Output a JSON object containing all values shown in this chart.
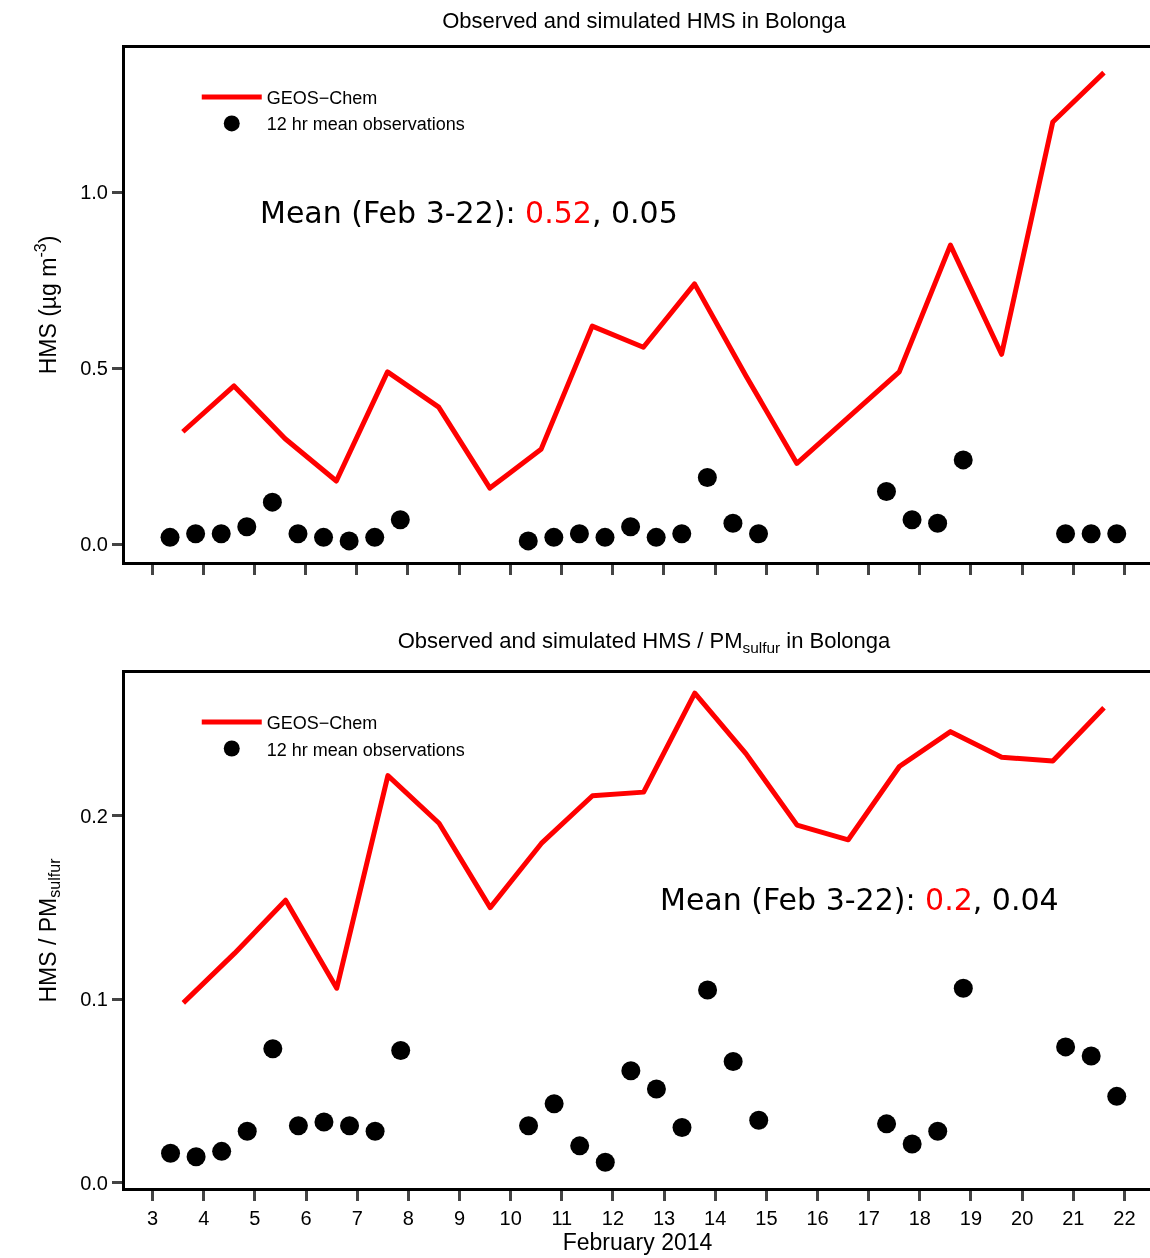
{
  "chart_data": [
    {
      "type": "line",
      "title": "Observed and simulated HMS in Bolonga",
      "ylabel": "HMS (µg m$^{-3}$)",
      "annotations": [
        "Mean (Feb 3-22): 0.52, 0.05"
      ],
      "xlim": [
        2.47,
        22.5
      ],
      "ylim": [
        -0.05,
        1.41
      ],
      "xticks": [
        3,
        4,
        5,
        6,
        7,
        8,
        9,
        10,
        11,
        12,
        13,
        14,
        15,
        16,
        17,
        18,
        19,
        20,
        21,
        22
      ],
      "yticks": [
        {
          "value": 0,
          "label": "0.0"
        },
        {
          "value": 0.5,
          "label": "0.5"
        },
        {
          "value": 1,
          "label": "1.0"
        }
      ],
      "tick_labels": "y",
      "grid": false,
      "legend": "top left",
      "series": [
        {
          "name": "GEOS−Chem",
          "color": "#ff0000",
          "line_style": "solid",
          "x": [
            3.6,
            4.6,
            5.6,
            6.6,
            7.6,
            8.6,
            9.6,
            10.6,
            11.6,
            12.6,
            13.6,
            14.6,
            15.6,
            16.6,
            17.6,
            18.6,
            19.6,
            20.6,
            21.6
          ],
          "values": [
            0.32,
            0.45,
            0.3,
            0.18,
            0.49,
            0.39,
            0.16,
            0.27,
            0.62,
            0.56,
            0.74,
            0.48,
            0.23,
            0.36,
            0.49,
            0.85,
            0.54,
            1.2,
            1.34
          ]
        },
        {
          "name": "12 hr mean observations",
          "type": "scatter",
          "color": "#000000",
          "marker": "circle",
          "x": [
            3.35,
            3.85,
            4.35,
            4.85,
            5.35,
            5.85,
            6.35,
            6.85,
            7.35,
            7.85,
            10.35,
            10.85,
            11.35,
            11.85,
            12.35,
            12.85,
            13.35,
            13.85,
            14.35,
            14.85,
            17.35,
            17.85,
            18.35,
            18.85,
            20.85,
            21.35,
            21.85
          ],
          "values": [
            0.02,
            0.03,
            0.03,
            0.05,
            0.12,
            0.03,
            0.02,
            0.01,
            0.02,
            0.07,
            0.01,
            0.02,
            0.03,
            0.02,
            0.05,
            0.02,
            0.03,
            0.19,
            0.06,
            0.03,
            0.15,
            0.07,
            0.06,
            0.24,
            0.03,
            0.03,
            0.03
          ]
        }
      ]
    },
    {
      "type": "line",
      "title": "Observed and simulated HMS / PM$_{sulfur}$ in Bolonga",
      "xlabel": "February 2014",
      "ylabel": "HMS / PM$_{sulfur}$",
      "annotations": [
        "Mean (Feb 3-22): 0.2, 0.04"
      ],
      "xlim": [
        2.46,
        22.5
      ],
      "ylim": [
        -0.003,
        0.278
      ],
      "xticks": [
        3,
        4,
        5,
        6,
        7,
        8,
        9,
        10,
        11,
        12,
        13,
        14,
        15,
        16,
        17,
        18,
        19,
        20,
        21,
        22
      ],
      "yticks": [
        {
          "value": 0,
          "label": "0.0"
        },
        0.1,
        0.2
      ],
      "grid": false,
      "legend": "top left",
      "series": [
        {
          "name": "GEOS−Chem",
          "color": "#ff0000",
          "line_style": "solid",
          "x": [
            3.6,
            4.6,
            5.6,
            6.6,
            7.6,
            8.6,
            9.6,
            10.6,
            11.6,
            12.6,
            13.6,
            14.6,
            15.6,
            16.6,
            17.6,
            18.6,
            19.6,
            20.6,
            21.6
          ],
          "values": [
            0.098,
            0.125,
            0.154,
            0.106,
            0.222,
            0.196,
            0.15,
            0.185,
            0.211,
            0.213,
            0.267,
            0.234,
            0.195,
            0.187,
            0.227,
            0.246,
            0.232,
            0.23,
            0.259
          ]
        },
        {
          "name": "12 hr mean observations",
          "type": "scatter",
          "color": "#000000",
          "marker": "circle",
          "x": [
            3.35,
            3.85,
            4.35,
            4.85,
            5.35,
            5.85,
            6.35,
            6.85,
            7.35,
            7.85,
            10.35,
            10.85,
            11.35,
            11.85,
            12.35,
            12.85,
            13.35,
            13.85,
            14.35,
            14.85,
            17.35,
            17.85,
            18.35,
            18.85,
            20.85,
            21.35,
            21.85
          ],
          "values": [
            0.016,
            0.014,
            0.017,
            0.028,
            0.073,
            0.031,
            0.033,
            0.031,
            0.028,
            0.072,
            0.031,
            0.043,
            0.02,
            0.011,
            0.061,
            0.051,
            0.03,
            0.105,
            0.066,
            0.034,
            0.032,
            0.021,
            0.028,
            0.106,
            0.074,
            0.069,
            0.047
          ]
        }
      ]
    }
  ]
}
